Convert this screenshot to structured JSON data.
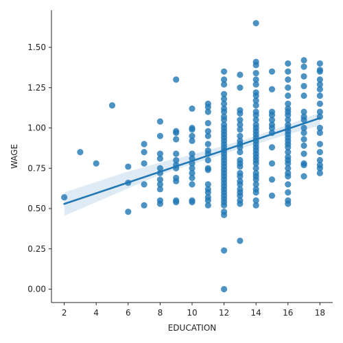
{
  "chart_data": {
    "type": "scatter",
    "title": "",
    "xlabel": "EDUCATION",
    "ylabel": "WAGE",
    "xlim": [
      1.2,
      18.8
    ],
    "ylim": [
      -0.083,
      1.73
    ],
    "xticks": [
      2,
      4,
      6,
      8,
      10,
      12,
      14,
      16,
      18
    ],
    "yticks": [
      0.0,
      0.25,
      0.5,
      0.75,
      1.0,
      1.25,
      1.5
    ],
    "ytick_labels": [
      "0.00",
      "0.25",
      "0.50",
      "0.75",
      "1.00",
      "1.25",
      "1.50"
    ],
    "grid": false,
    "colors": {
      "points": "#1f77b4",
      "regression": "#1f77b4",
      "band": "#1f77b4"
    },
    "regression": {
      "slope": 0.0333,
      "intercept": 0.462,
      "x_range": [
        2,
        18
      ]
    },
    "confidence_band": {
      "x": [
        2,
        4,
        6,
        8,
        10,
        12,
        14,
        16,
        18
      ],
      "lower": [
        0.455,
        0.54,
        0.625,
        0.71,
        0.775,
        0.84,
        0.9,
        0.96,
        1.015
      ],
      "upper": [
        0.6,
        0.665,
        0.73,
        0.785,
        0.835,
        0.89,
        0.95,
        1.02,
        1.095
      ]
    },
    "series": [
      {
        "points": [
          [
            2,
            0.57
          ],
          [
            3,
            0.85
          ],
          [
            4,
            0.78
          ],
          [
            5,
            1.14
          ],
          [
            6,
            0.76
          ],
          [
            6,
            0.66
          ],
          [
            6,
            0.48
          ],
          [
            7,
            0.9
          ],
          [
            7,
            0.85
          ],
          [
            7,
            0.78
          ],
          [
            7,
            0.65
          ],
          [
            7,
            0.52
          ],
          [
            8,
            1.04
          ],
          [
            8,
            0.95
          ],
          [
            8,
            0.84
          ],
          [
            8,
            0.81
          ],
          [
            8,
            0.75
          ],
          [
            8,
            0.72
          ],
          [
            8,
            0.68
          ],
          [
            8,
            0.65
          ],
          [
            8,
            0.62
          ],
          [
            8,
            0.55
          ],
          [
            8,
            0.53
          ],
          [
            9,
            1.3
          ],
          [
            9,
            0.98
          ],
          [
            9,
            0.97
          ],
          [
            9,
            0.93
          ],
          [
            9,
            0.84
          ],
          [
            9,
            0.8
          ],
          [
            9,
            0.77
          ],
          [
            9,
            0.75
          ],
          [
            9,
            0.69
          ],
          [
            9,
            0.67
          ],
          [
            9,
            0.55
          ],
          [
            9,
            0.54
          ],
          [
            10,
            1.12
          ],
          [
            10,
            1.0
          ],
          [
            10,
            0.99
          ],
          [
            10,
            0.95
          ],
          [
            10,
            0.92
          ],
          [
            10,
            0.84
          ],
          [
            10,
            0.81
          ],
          [
            10,
            0.78
          ],
          [
            10,
            0.75
          ],
          [
            10,
            0.72
          ],
          [
            10,
            0.69
          ],
          [
            10,
            0.65
          ],
          [
            10,
            0.55
          ],
          [
            10,
            0.54
          ],
          [
            11,
            1.15
          ],
          [
            11,
            1.13
          ],
          [
            11,
            1.1
          ],
          [
            11,
            1.03
          ],
          [
            11,
            0.98
          ],
          [
            11,
            0.95
          ],
          [
            11,
            0.9
          ],
          [
            11,
            0.86
          ],
          [
            11,
            0.84
          ],
          [
            11,
            0.8
          ],
          [
            11,
            0.75
          ],
          [
            11,
            0.74
          ],
          [
            11,
            0.65
          ],
          [
            11,
            0.62
          ],
          [
            11,
            0.6
          ],
          [
            11,
            0.57
          ],
          [
            11,
            0.55
          ],
          [
            11,
            0.52
          ],
          [
            12,
            1.35
          ],
          [
            12,
            1.3
          ],
          [
            12,
            1.27
          ],
          [
            12,
            1.21
          ],
          [
            12,
            1.18
          ],
          [
            12,
            1.15
          ],
          [
            12,
            1.12
          ],
          [
            12,
            1.1
          ],
          [
            12,
            1.07
          ],
          [
            12,
            1.05
          ],
          [
            12,
            1.02
          ],
          [
            12,
            1.0
          ],
          [
            12,
            0.98
          ],
          [
            12,
            0.96
          ],
          [
            12,
            0.94
          ],
          [
            12,
            0.92
          ],
          [
            12,
            0.9
          ],
          [
            12,
            0.88
          ],
          [
            12,
            0.86
          ],
          [
            12,
            0.84
          ],
          [
            12,
            0.82
          ],
          [
            12,
            0.8
          ],
          [
            12,
            0.78
          ],
          [
            12,
            0.76
          ],
          [
            12,
            0.74
          ],
          [
            12,
            0.72
          ],
          [
            12,
            0.7
          ],
          [
            12,
            0.68
          ],
          [
            12,
            0.66
          ],
          [
            12,
            0.64
          ],
          [
            12,
            0.62
          ],
          [
            12,
            0.6
          ],
          [
            12,
            0.58
          ],
          [
            12,
            0.56
          ],
          [
            12,
            0.54
          ],
          [
            12,
            0.52
          ],
          [
            12,
            0.48
          ],
          [
            12,
            0.46
          ],
          [
            12,
            0.24
          ],
          [
            12,
            0.0
          ],
          [
            13,
            1.33
          ],
          [
            13,
            1.25
          ],
          [
            13,
            1.11
          ],
          [
            13,
            1.09
          ],
          [
            13,
            1.05
          ],
          [
            13,
            1.02
          ],
          [
            13,
            0.99
          ],
          [
            13,
            0.95
          ],
          [
            13,
            0.92
          ],
          [
            13,
            0.9
          ],
          [
            13,
            0.88
          ],
          [
            13,
            0.85
          ],
          [
            13,
            0.8
          ],
          [
            13,
            0.78
          ],
          [
            13,
            0.76
          ],
          [
            13,
            0.72
          ],
          [
            13,
            0.7
          ],
          [
            13,
            0.67
          ],
          [
            13,
            0.65
          ],
          [
            13,
            0.62
          ],
          [
            13,
            0.6
          ],
          [
            13,
            0.58
          ],
          [
            13,
            0.55
          ],
          [
            13,
            0.53
          ],
          [
            13,
            0.3
          ],
          [
            14,
            1.65
          ],
          [
            14,
            1.41
          ],
          [
            14,
            1.39
          ],
          [
            14,
            1.34
          ],
          [
            14,
            1.3
          ],
          [
            14,
            1.27
          ],
          [
            14,
            1.22
          ],
          [
            14,
            1.2
          ],
          [
            14,
            1.17
          ],
          [
            14,
            1.14
          ],
          [
            14,
            1.1
          ],
          [
            14,
            1.08
          ],
          [
            14,
            1.05
          ],
          [
            14,
            1.02
          ],
          [
            14,
            1.0
          ],
          [
            14,
            0.98
          ],
          [
            14,
            0.96
          ],
          [
            14,
            0.94
          ],
          [
            14,
            0.92
          ],
          [
            14,
            0.9
          ],
          [
            14,
            0.88
          ],
          [
            14,
            0.86
          ],
          [
            14,
            0.84
          ],
          [
            14,
            0.82
          ],
          [
            14,
            0.8
          ],
          [
            14,
            0.78
          ],
          [
            14,
            0.75
          ],
          [
            14,
            0.72
          ],
          [
            14,
            0.7
          ],
          [
            14,
            0.68
          ],
          [
            14,
            0.65
          ],
          [
            14,
            0.62
          ],
          [
            14,
            0.6
          ],
          [
            14,
            0.55
          ],
          [
            14,
            0.52
          ],
          [
            15,
            1.35
          ],
          [
            15,
            1.24
          ],
          [
            15,
            1.1
          ],
          [
            15,
            1.08
          ],
          [
            15,
            1.05
          ],
          [
            15,
            1.02
          ],
          [
            15,
            1.0
          ],
          [
            15,
            0.97
          ],
          [
            15,
            0.88
          ],
          [
            15,
            0.78
          ],
          [
            15,
            0.68
          ],
          [
            15,
            0.58
          ],
          [
            16,
            1.4
          ],
          [
            16,
            1.35
          ],
          [
            16,
            1.3
          ],
          [
            16,
            1.25
          ],
          [
            16,
            1.2
          ],
          [
            16,
            1.15
          ],
          [
            16,
            1.12
          ],
          [
            16,
            1.1
          ],
          [
            16,
            1.08
          ],
          [
            16,
            1.05
          ],
          [
            16,
            1.02
          ],
          [
            16,
            1.0
          ],
          [
            16,
            0.98
          ],
          [
            16,
            0.96
          ],
          [
            16,
            0.94
          ],
          [
            16,
            0.92
          ],
          [
            16,
            0.9
          ],
          [
            16,
            0.88
          ],
          [
            16,
            0.85
          ],
          [
            16,
            0.82
          ],
          [
            16,
            0.8
          ],
          [
            16,
            0.78
          ],
          [
            16,
            0.75
          ],
          [
            16,
            0.72
          ],
          [
            16,
            0.7
          ],
          [
            16,
            0.65
          ],
          [
            16,
            0.6
          ],
          [
            16,
            0.55
          ],
          [
            16,
            0.53
          ],
          [
            17,
            1.42
          ],
          [
            17,
            1.38
          ],
          [
            17,
            1.32
          ],
          [
            17,
            1.26
          ],
          [
            17,
            1.2
          ],
          [
            17,
            1.1
          ],
          [
            17,
            1.07
          ],
          [
            17,
            1.05
          ],
          [
            17,
            1.0
          ],
          [
            17,
            0.97
          ],
          [
            17,
            0.93
          ],
          [
            17,
            0.89
          ],
          [
            17,
            0.84
          ],
          [
            17,
            0.78
          ],
          [
            17,
            0.77
          ],
          [
            17,
            0.7
          ],
          [
            18,
            1.4
          ],
          [
            18,
            1.36
          ],
          [
            18,
            1.35
          ],
          [
            18,
            1.3
          ],
          [
            18,
            1.27
          ],
          [
            18,
            1.24
          ],
          [
            18,
            1.2
          ],
          [
            18,
            1.15
          ],
          [
            18,
            1.1
          ],
          [
            18,
            1.07
          ],
          [
            18,
            1.0
          ],
          [
            18,
            0.97
          ],
          [
            18,
            0.9
          ],
          [
            18,
            0.85
          ],
          [
            18,
            0.8
          ],
          [
            18,
            0.77
          ],
          [
            18,
            0.75
          ],
          [
            18,
            0.72
          ]
        ]
      }
    ]
  }
}
